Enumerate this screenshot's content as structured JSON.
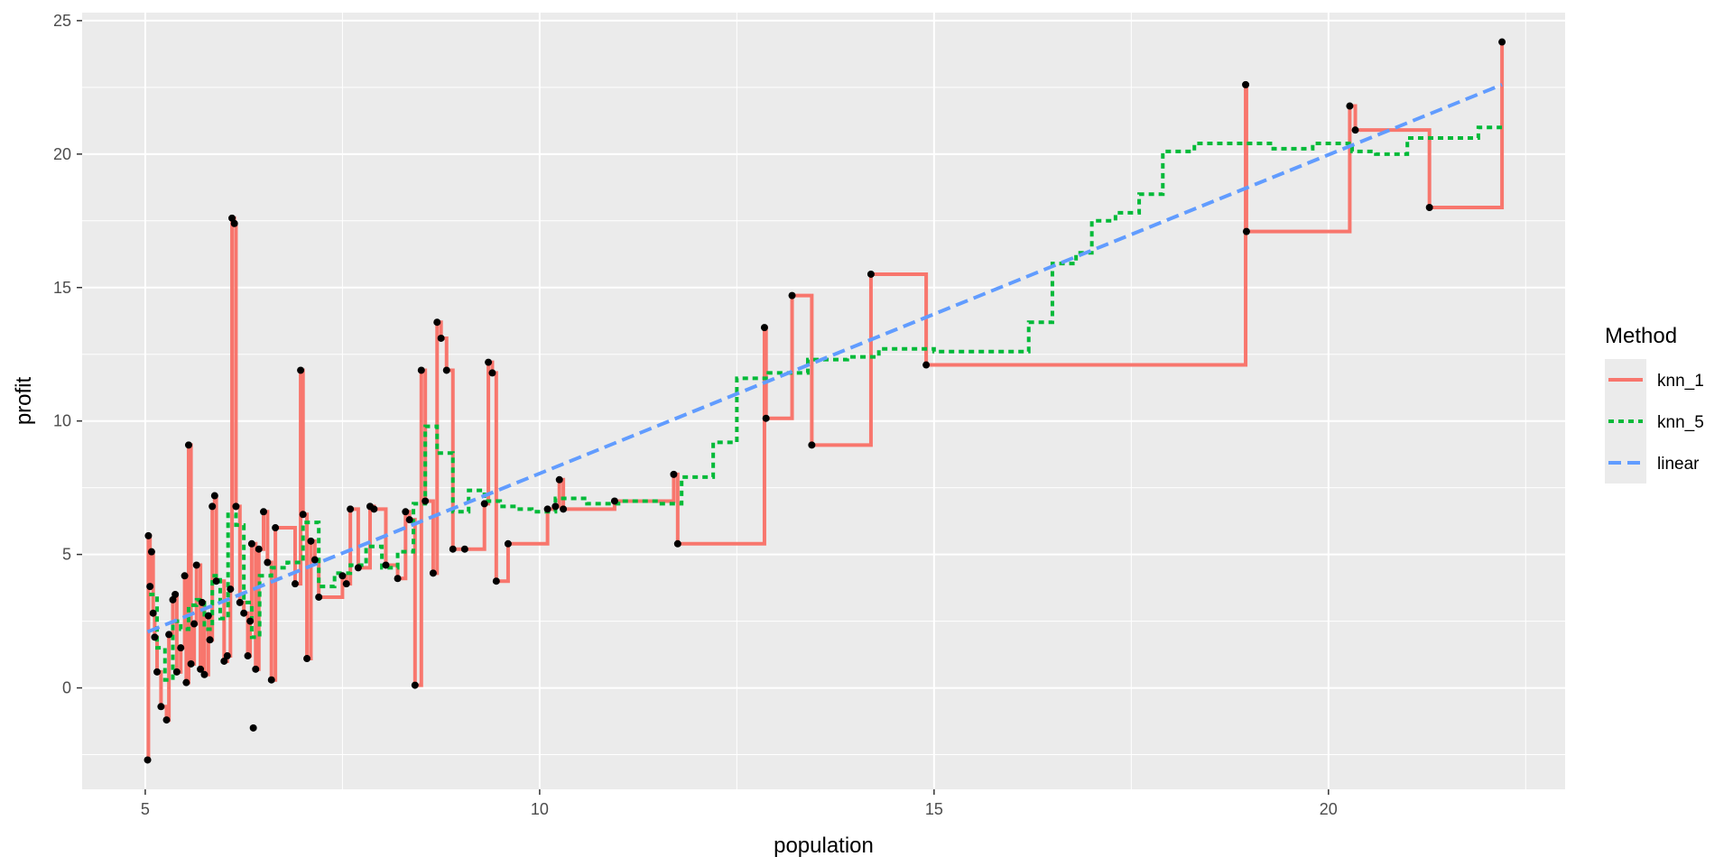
{
  "chart_data": {
    "type": "line",
    "title": "",
    "xlabel": "population",
    "ylabel": "profit",
    "xlim": [
      4.2,
      23.0
    ],
    "ylim": [
      -3.8,
      25.3
    ],
    "x_ticks": [
      5,
      10,
      15,
      20
    ],
    "y_ticks": [
      0,
      5,
      10,
      15,
      20,
      25
    ],
    "grid": true,
    "panel_background": "#ebebeb",
    "legend": {
      "title": "Method",
      "position": "right",
      "entries": [
        {
          "label": "knn_1",
          "color": "#f8766d",
          "dash": "solid"
        },
        {
          "label": "knn_5",
          "color": "#00ba38",
          "dash": "dotted"
        },
        {
          "label": "linear",
          "color": "#619cff",
          "dash": "dashed"
        }
      ]
    },
    "points": [
      [
        5.03,
        -2.7
      ],
      [
        5.04,
        5.7
      ],
      [
        5.06,
        3.8
      ],
      [
        5.08,
        5.1
      ],
      [
        5.1,
        2.8
      ],
      [
        5.12,
        1.9
      ],
      [
        5.15,
        0.6
      ],
      [
        5.2,
        -0.7
      ],
      [
        5.27,
        -1.2
      ],
      [
        5.3,
        2.0
      ],
      [
        5.35,
        3.3
      ],
      [
        5.38,
        3.5
      ],
      [
        5.4,
        0.6
      ],
      [
        5.45,
        1.5
      ],
      [
        5.5,
        4.2
      ],
      [
        5.52,
        0.2
      ],
      [
        5.55,
        9.1
      ],
      [
        5.58,
        0.9
      ],
      [
        5.62,
        2.4
      ],
      [
        5.65,
        4.6
      ],
      [
        5.7,
        0.7
      ],
      [
        5.72,
        3.2
      ],
      [
        5.75,
        0.5
      ],
      [
        5.8,
        2.7
      ],
      [
        5.82,
        1.8
      ],
      [
        5.85,
        6.8
      ],
      [
        5.88,
        7.2
      ],
      [
        5.9,
        4.0
      ],
      [
        6.0,
        1.0
      ],
      [
        6.04,
        1.2
      ],
      [
        6.08,
        3.7
      ],
      [
        6.1,
        17.6
      ],
      [
        6.13,
        17.4
      ],
      [
        6.15,
        6.8
      ],
      [
        6.2,
        3.2
      ],
      [
        6.25,
        2.8
      ],
      [
        6.3,
        1.2
      ],
      [
        6.33,
        2.5
      ],
      [
        6.35,
        5.4
      ],
      [
        6.37,
        -1.5
      ],
      [
        6.4,
        0.7
      ],
      [
        6.44,
        5.2
      ],
      [
        6.5,
        6.6
      ],
      [
        6.55,
        4.7
      ],
      [
        6.6,
        0.3
      ],
      [
        6.65,
        6.0
      ],
      [
        6.9,
        3.9
      ],
      [
        6.97,
        11.9
      ],
      [
        7.0,
        6.5
      ],
      [
        7.05,
        1.1
      ],
      [
        7.1,
        5.5
      ],
      [
        7.15,
        4.8
      ],
      [
        7.2,
        3.4
      ],
      [
        7.5,
        4.2
      ],
      [
        7.55,
        3.9
      ],
      [
        7.6,
        6.7
      ],
      [
        7.7,
        4.5
      ],
      [
        7.85,
        6.8
      ],
      [
        7.9,
        6.7
      ],
      [
        8.05,
        4.6
      ],
      [
        8.2,
        4.1
      ],
      [
        8.3,
        6.6
      ],
      [
        8.35,
        6.3
      ],
      [
        8.42,
        0.1
      ],
      [
        8.5,
        11.9
      ],
      [
        8.55,
        7.0
      ],
      [
        8.65,
        4.3
      ],
      [
        8.7,
        13.7
      ],
      [
        8.75,
        13.1
      ],
      [
        8.82,
        11.9
      ],
      [
        8.9,
        5.2
      ],
      [
        9.05,
        5.2
      ],
      [
        9.3,
        6.9
      ],
      [
        9.35,
        12.2
      ],
      [
        9.4,
        11.8
      ],
      [
        9.45,
        4.0
      ],
      [
        9.6,
        5.4
      ],
      [
        10.1,
        6.7
      ],
      [
        10.2,
        6.8
      ],
      [
        10.25,
        7.8
      ],
      [
        10.3,
        6.7
      ],
      [
        10.95,
        7.0
      ],
      [
        11.7,
        8.0
      ],
      [
        11.75,
        5.4
      ],
      [
        12.85,
        13.5
      ],
      [
        12.87,
        10.1
      ],
      [
        13.2,
        14.7
      ],
      [
        13.45,
        9.1
      ],
      [
        14.2,
        15.5
      ],
      [
        14.9,
        12.1
      ],
      [
        18.95,
        22.6
      ],
      [
        18.96,
        17.1
      ],
      [
        20.27,
        21.8
      ],
      [
        20.34,
        20.9
      ],
      [
        21.28,
        18.0
      ],
      [
        22.2,
        24.2
      ]
    ],
    "series": [
      {
        "name": "knn_1",
        "color": "#f8766d",
        "dash": "solid",
        "x": [
          5.03,
          5.04,
          5.06,
          5.08,
          5.1,
          5.12,
          5.15,
          5.2,
          5.27,
          5.3,
          5.35,
          5.38,
          5.4,
          5.45,
          5.5,
          5.52,
          5.55,
          5.58,
          5.62,
          5.65,
          5.7,
          5.72,
          5.75,
          5.8,
          5.82,
          5.85,
          5.88,
          5.9,
          6.0,
          6.04,
          6.08,
          6.1,
          6.13,
          6.15,
          6.2,
          6.25,
          6.3,
          6.33,
          6.35,
          6.4,
          6.44,
          6.5,
          6.55,
          6.6,
          6.65,
          6.9,
          6.97,
          7.0,
          7.05,
          7.1,
          7.15,
          7.2,
          7.5,
          7.55,
          7.6,
          7.7,
          7.85,
          7.9,
          8.05,
          8.2,
          8.3,
          8.35,
          8.42,
          8.5,
          8.55,
          8.65,
          8.7,
          8.75,
          8.82,
          8.9,
          9.05,
          9.3,
          9.35,
          9.4,
          9.45,
          9.6,
          10.1,
          10.2,
          10.25,
          10.3,
          10.95,
          11.7,
          11.75,
          12.85,
          12.87,
          13.2,
          13.45,
          14.2,
          14.9,
          18.95,
          18.96,
          20.27,
          20.34,
          21.28,
          22.2
        ],
        "y": [
          -2.7,
          5.7,
          3.8,
          5.1,
          2.8,
          1.9,
          0.6,
          -0.7,
          -1.2,
          2.0,
          3.3,
          3.5,
          0.6,
          1.5,
          4.2,
          0.2,
          9.1,
          0.9,
          2.4,
          4.6,
          0.7,
          3.2,
          0.5,
          2.7,
          1.8,
          6.8,
          7.2,
          4.0,
          1.0,
          1.2,
          3.7,
          17.6,
          17.4,
          6.8,
          3.2,
          2.8,
          1.2,
          2.5,
          5.4,
          0.7,
          5.2,
          6.6,
          4.7,
          0.3,
          6.0,
          3.9,
          11.9,
          6.5,
          1.1,
          5.5,
          4.8,
          3.4,
          4.2,
          3.9,
          6.7,
          4.5,
          6.8,
          6.7,
          4.6,
          4.1,
          6.6,
          6.3,
          0.1,
          11.9,
          7.0,
          4.3,
          13.7,
          13.1,
          11.9,
          5.2,
          5.2,
          6.9,
          12.2,
          11.8,
          4.0,
          5.4,
          6.7,
          6.8,
          7.8,
          6.7,
          7.0,
          8.0,
          5.4,
          13.5,
          10.1,
          14.7,
          9.1,
          15.5,
          12.1,
          22.6,
          17.1,
          21.8,
          20.9,
          18.0,
          24.2
        ]
      },
      {
        "name": "knn_5",
        "color": "#00ba38",
        "dash": "dotted",
        "x": [
          5.05,
          5.15,
          5.25,
          5.35,
          5.45,
          5.55,
          5.65,
          5.75,
          5.85,
          5.95,
          6.05,
          6.15,
          6.25,
          6.35,
          6.45,
          6.6,
          6.8,
          7.0,
          7.2,
          7.4,
          7.6,
          7.8,
          8.0,
          8.2,
          8.4,
          8.55,
          8.7,
          8.9,
          9.1,
          9.3,
          9.5,
          9.7,
          9.9,
          10.2,
          10.6,
          11.0,
          11.5,
          11.8,
          12.2,
          12.5,
          12.9,
          13.4,
          13.9,
          14.3,
          15.0,
          15.5,
          16.0,
          16.2,
          16.5,
          16.8,
          17.0,
          17.3,
          17.6,
          17.9,
          18.3,
          18.9,
          19.3,
          19.8,
          20.3,
          20.6,
          21.0,
          21.4,
          21.9,
          22.2
        ],
        "y": [
          3.5,
          1.5,
          0.3,
          2.5,
          2.2,
          3.1,
          3.3,
          2.2,
          4.2,
          2.6,
          6.5,
          6.1,
          3.2,
          1.9,
          4.2,
          4.5,
          4.7,
          6.2,
          3.8,
          4.3,
          4.6,
          5.3,
          4.5,
          5.1,
          6.9,
          9.8,
          8.8,
          6.6,
          7.4,
          7.0,
          6.8,
          6.7,
          6.6,
          7.1,
          6.9,
          7.0,
          6.9,
          7.9,
          9.2,
          11.6,
          11.8,
          12.3,
          12.4,
          12.7,
          12.6,
          12.6,
          12.6,
          13.7,
          15.9,
          16.3,
          17.5,
          17.8,
          18.5,
          20.1,
          20.4,
          20.4,
          20.2,
          20.4,
          20.1,
          20.0,
          20.6,
          20.6,
          21.0,
          21.0
        ]
      },
      {
        "name": "linear",
        "color": "#619cff",
        "dash": "dashed",
        "x": [
          5.03,
          22.2
        ],
        "y": [
          2.1,
          22.6
        ]
      }
    ]
  }
}
